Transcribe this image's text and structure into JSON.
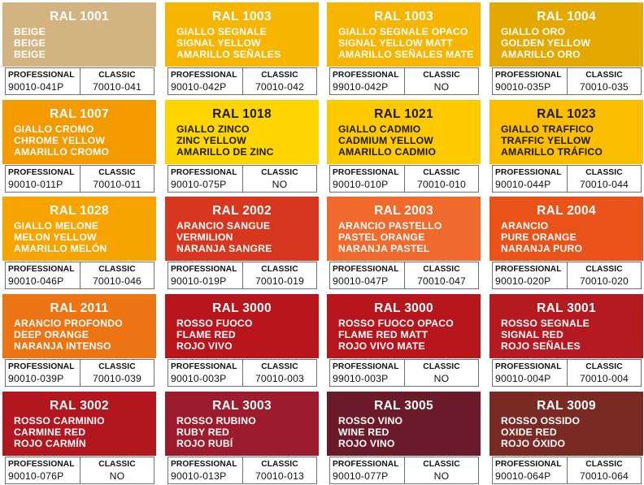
{
  "labels": {
    "professional": "PROFESSIONAL",
    "classic": "CLASSIC"
  },
  "cards": [
    {
      "code": "RAL 1001",
      "names": [
        "BEIGE",
        "BEIGE",
        "BEIGE"
      ],
      "professional": "90010-041P",
      "classic": "70010-041",
      "color": "#d3b380",
      "text_color": "#ffffff"
    },
    {
      "code": "RAL 1003",
      "names": [
        "GIALLO SEGNALE",
        "SIGNAL YELLOW",
        "AMARILLO SEÑALES"
      ],
      "professional": "90010-042P",
      "classic": "70010-042",
      "color": "#f7b500",
      "text_color": "#ffffff"
    },
    {
      "code": "RAL 1003",
      "names": [
        "GIALLO SEGNALE OPACO",
        "SIGNAL YELLOW MATT",
        "AMARILLO SEÑALES MATE"
      ],
      "professional": "99010-042P",
      "classic": "NO",
      "color": "#f7b500",
      "text_color": "#ffffff"
    },
    {
      "code": "RAL 1004",
      "names": [
        "GIALLO ORO",
        "GOLDEN YELLOW",
        "AMARILLO ORO"
      ],
      "professional": "90010-035P",
      "classic": "70010-035",
      "color": "#e4a800",
      "text_color": "#ffffff"
    },
    {
      "code": "RAL 1007",
      "names": [
        "GIALLO CROMO",
        "CHROME YELLOW",
        "AMARILLO CROMO"
      ],
      "professional": "90010-011P",
      "classic": "70010-011",
      "color": "#f39a00",
      "text_color": "#ffffff"
    },
    {
      "code": "RAL 1018",
      "names": [
        "GIALLO ZINCO",
        "ZINC YELLOW",
        "AMARILLO DE ZINC"
      ],
      "professional": "90010-075P",
      "classic": "NO",
      "color": "#ffd500",
      "text_color": "#1a1a1a"
    },
    {
      "code": "RAL 1021",
      "names": [
        "GIALLO CADMIO",
        "CADMIUM YELLOW",
        "AMARILLO CADMIO"
      ],
      "professional": "90010-010P",
      "classic": "70010-010",
      "color": "#ffc900",
      "text_color": "#1a1a1a"
    },
    {
      "code": "RAL 1023",
      "names": [
        "GIALLO TRAFFICO",
        "TRAFFIC YELLOW",
        "AMARILLO TRÁFICO"
      ],
      "professional": "90010-044P",
      "classic": "70010-044",
      "color": "#fbbd00",
      "text_color": "#1a1a1a"
    },
    {
      "code": "RAL 1028",
      "names": [
        "GIALLO MELONE",
        "MELON YELLOW",
        "AMARILLO MELÓN"
      ],
      "professional": "90010-046P",
      "classic": "70010-046",
      "color": "#f8a400",
      "text_color": "#ffffff"
    },
    {
      "code": "RAL 2002",
      "names": [
        "ARANCIO SANGUE",
        "VERMILION",
        "NARANJA SANGRE"
      ],
      "professional": "90010-019P",
      "classic": "70010-019",
      "color": "#d7371e",
      "text_color": "#ffffff"
    },
    {
      "code": "RAL 2003",
      "names": [
        "ARANCIO PASTELLO",
        "PASTEL ORANGE",
        "NARANJA PASTEL"
      ],
      "professional": "90010-047P",
      "classic": "70010-047",
      "color": "#ef6a2c",
      "text_color": "#ffffff"
    },
    {
      "code": "RAL 2004",
      "names": [
        "ARANCIO",
        "PURE ORANGE",
        "NARANJA PURO"
      ],
      "professional": "90010-020P",
      "classic": "70010-020",
      "color": "#e9531a",
      "text_color": "#ffffff"
    },
    {
      "code": "RAL 2011",
      "names": [
        "ARANCIO PROFONDO",
        "DEEP ORANGE",
        "NARANJA INTENSO"
      ],
      "professional": "90010-039P",
      "classic": "70010-039",
      "color": "#ec7412",
      "text_color": "#ffffff"
    },
    {
      "code": "RAL 3000",
      "names": [
        "ROSSO FUOCO",
        "FLAME RED",
        "ROJO VIVO"
      ],
      "professional": "90010-003P",
      "classic": "70010-003",
      "color": "#b7161d",
      "text_color": "#ffffff"
    },
    {
      "code": "RAL 3000",
      "names": [
        "ROSSO FUOCO OPACO",
        "FLAME RED MATT",
        "ROJO VIVO MATE"
      ],
      "professional": "99010-003P",
      "classic": "NO",
      "color": "#b7161d",
      "text_color": "#ffffff"
    },
    {
      "code": "RAL 3001",
      "names": [
        "ROSSO SEGNALE",
        "SIGNAL RED",
        "ROJO SEÑALES"
      ],
      "professional": "90010-004P",
      "classic": "70010-004",
      "color": "#b41a1f",
      "text_color": "#ffffff"
    },
    {
      "code": "RAL 3002",
      "names": [
        "ROSSO CARMINIO",
        "CARMINE RED",
        "ROJO CARMÍN"
      ],
      "professional": "90010-076P",
      "classic": "NO",
      "color": "#b2161f",
      "text_color": "#ffffff"
    },
    {
      "code": "RAL 3003",
      "names": [
        "ROSSO RUBINO",
        "RUBY RED",
        "ROJO RUBÍ"
      ],
      "professional": "90010-013P",
      "classic": "70010-013",
      "color": "#9c1b2c",
      "text_color": "#ffffff"
    },
    {
      "code": "RAL 3005",
      "names": [
        "ROSSO VINO",
        "WINE RED",
        "ROJO VINO"
      ],
      "professional": "90010-077P",
      "classic": "NO",
      "color": "#6b1a2a",
      "text_color": "#ffffff"
    },
    {
      "code": "RAL 3009",
      "names": [
        "ROSSO OSSIDO",
        "OXIDE RED",
        "ROJO ÓXIDO"
      ],
      "professional": "90010-064P",
      "classic": "70010-064",
      "color": "#7a2a22",
      "text_color": "#ffffff"
    }
  ]
}
